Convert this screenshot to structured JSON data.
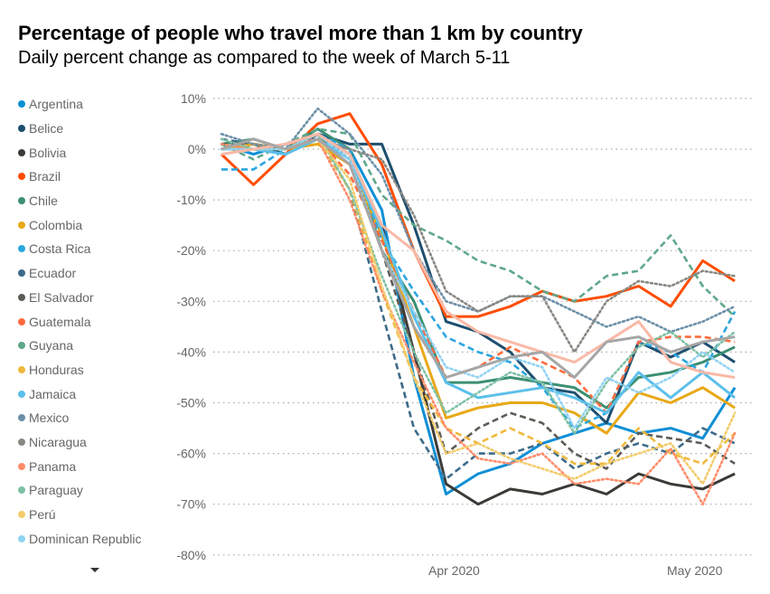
{
  "chart_data": {
    "type": "line",
    "title": "Percentage of people who travel more than 1 km by country",
    "subtitle": "Daily percent change as compared to the week of March 5-11",
    "xlabel": "",
    "ylabel": "",
    "x": [
      "2020-03-03",
      "2020-03-07",
      "2020-03-11",
      "2020-03-15",
      "2020-03-19",
      "2020-03-23",
      "2020-03-27",
      "2020-03-31",
      "2020-04-04",
      "2020-04-08",
      "2020-04-12",
      "2020-04-16",
      "2020-04-20",
      "2020-04-24",
      "2020-04-28",
      "2020-05-02",
      "2020-05-06"
    ],
    "xlim": [
      "2020-03-03",
      "2020-05-07"
    ],
    "x_ticks": [
      {
        "date": "2020-04-01",
        "label": "Apr 2020"
      },
      {
        "date": "2020-05-01",
        "label": "May 2020"
      }
    ],
    "ylim": [
      -80,
      10
    ],
    "y_ticks": [
      {
        "v": 10,
        "label": "10%"
      },
      {
        "v": 0,
        "label": "0%"
      },
      {
        "v": -10,
        "label": "-10%"
      },
      {
        "v": -20,
        "label": "-20%"
      },
      {
        "v": -30,
        "label": "-30%"
      },
      {
        "v": -40,
        "label": "-40%"
      },
      {
        "v": -50,
        "label": "-50%"
      },
      {
        "v": -60,
        "label": "-60%"
      },
      {
        "v": -70,
        "label": "-70%"
      },
      {
        "v": -80,
        "label": "-80%"
      }
    ],
    "grid": "horizontal dotted",
    "legend": "left",
    "series": [
      {
        "name": "Argentina",
        "color": "#0f8fd6",
        "style": "solid",
        "values": [
          1,
          -1,
          1,
          2,
          0,
          -12,
          -45,
          -68,
          -64,
          -62,
          -58,
          -56,
          -54,
          -56,
          -55,
          -57,
          -47
        ]
      },
      {
        "name": "Belice",
        "color": "#1d4e6e",
        "style": "solid",
        "values": [
          0,
          1,
          -1,
          3,
          1,
          1,
          -15,
          -34,
          -36,
          -40,
          -47,
          -48,
          -54,
          -38,
          -41,
          -38,
          -42
        ]
      },
      {
        "name": "Bolivia",
        "color": "#3b3a36",
        "style": "solid",
        "values": [
          0,
          1,
          0,
          3,
          -1,
          -15,
          -40,
          -66,
          -70,
          -67,
          -68,
          -66,
          -68,
          -64,
          -66,
          -67,
          -64
        ]
      },
      {
        "name": "Brazil",
        "color": "#ff4d00",
        "style": "solid",
        "values": [
          -1,
          -7,
          -1,
          5,
          7,
          -3,
          -20,
          -33,
          -33,
          -31,
          -28,
          -30,
          -29,
          -27,
          -31,
          -22,
          -26
        ]
      },
      {
        "name": "Chile",
        "color": "#3c8f73",
        "style": "solid",
        "values": [
          1,
          2,
          0,
          4,
          0,
          -20,
          -30,
          -46,
          -46,
          -45,
          -46,
          -47,
          -51,
          -45,
          -44,
          -42,
          -39
        ]
      },
      {
        "name": "Colombia",
        "color": "#e8a817",
        "style": "solid",
        "values": [
          0,
          1,
          0,
          1,
          -3,
          -17,
          -35,
          -53,
          -51,
          -50,
          -50,
          -52,
          -56,
          -48,
          -50,
          -47,
          -51
        ]
      },
      {
        "name": "Costa Rica",
        "color": "#2ca6e0",
        "style": "dashed",
        "values": [
          -4,
          -4,
          0,
          3,
          0,
          -18,
          -28,
          -37,
          -40,
          -42,
          -47,
          -55,
          -52,
          -38,
          -40,
          -44,
          -32
        ]
      },
      {
        "name": "Ecuador",
        "color": "#3d6b8a",
        "style": "dashed",
        "values": [
          2,
          1,
          0,
          2,
          -8,
          -32,
          -55,
          -65,
          -60,
          -60,
          -58,
          -63,
          -60,
          -58,
          -60,
          -55,
          -58
        ]
      },
      {
        "name": "El Salvador",
        "color": "#5c5c56",
        "style": "dashed",
        "values": [
          1,
          1,
          0,
          3,
          -2,
          -20,
          -40,
          -60,
          -55,
          -52,
          -54,
          -60,
          -63,
          -56,
          -57,
          -58,
          -62
        ]
      },
      {
        "name": "Guatemala",
        "color": "#ff6a3d",
        "style": "dashed",
        "values": [
          0,
          1,
          0,
          2,
          -5,
          -18,
          -32,
          -45,
          -43,
          -39,
          -42,
          -45,
          -52,
          -38,
          -37,
          -37,
          -38
        ]
      },
      {
        "name": "Guyana",
        "color": "#5fa88a",
        "style": "dashed",
        "values": [
          1,
          -2,
          1,
          4,
          3,
          -9,
          -15,
          -18,
          -22,
          -24,
          -28,
          -30,
          -25,
          -24,
          -17,
          -27,
          -33
        ]
      },
      {
        "name": "Honduras",
        "color": "#f0b83c",
        "style": "dashed",
        "values": [
          0,
          1,
          0,
          2,
          -8,
          -28,
          -45,
          -55,
          -58,
          -55,
          -58,
          -62,
          -62,
          -55,
          -60,
          -62,
          -56
        ]
      },
      {
        "name": "Jamaica",
        "color": "#5cc0ea",
        "style": "solid",
        "values": [
          0,
          0,
          -1,
          2,
          -2,
          -16,
          -33,
          -46,
          -49,
          -48,
          -47,
          -49,
          -52,
          -44,
          -49,
          -44,
          -49
        ]
      },
      {
        "name": "Mexico",
        "color": "#6c8fa8",
        "style": "dotted",
        "values": [
          3,
          1,
          0,
          8,
          3,
          -5,
          -20,
          -30,
          -32,
          -29,
          -29,
          -32,
          -35,
          -33,
          -36,
          -34,
          -31
        ]
      },
      {
        "name": "Nicaragua",
        "color": "#888883",
        "style": "dotted",
        "values": [
          0,
          0,
          0,
          2,
          0,
          -2,
          -13,
          -28,
          -32,
          -29,
          -29,
          -40,
          -30,
          -26,
          -27,
          -24,
          -25
        ]
      },
      {
        "name": "Panama",
        "color": "#ff8c6a",
        "style": "dotted",
        "values": [
          1,
          0,
          1,
          2,
          -10,
          -28,
          -42,
          -55,
          -61,
          -62,
          -60,
          -66,
          -65,
          -66,
          -59,
          -70,
          -56
        ]
      },
      {
        "name": "Paraguay",
        "color": "#7fc1a6",
        "style": "dotted",
        "values": [
          2,
          0,
          0,
          3,
          -8,
          -25,
          -40,
          -52,
          -48,
          -44,
          -46,
          -56,
          -46,
          -39,
          -36,
          -41,
          -36
        ]
      },
      {
        "name": "Perú",
        "color": "#f3cc6b",
        "style": "dotted",
        "values": [
          0,
          0,
          0,
          2,
          -6,
          -27,
          -45,
          -60,
          -58,
          -61,
          -63,
          -65,
          -62,
          -60,
          -58,
          -66,
          -52
        ]
      },
      {
        "name": "Dominican Republic",
        "color": "#91d3f2",
        "style": "dotted",
        "values": [
          0,
          0,
          0,
          3,
          -2,
          -20,
          -32,
          -43,
          -45,
          -41,
          -43,
          -55,
          -45,
          -48,
          -45,
          -40,
          -44
        ]
      },
      {
        "color": "#f9b9a6",
        "style": "solid",
        "values": [
          -1,
          0,
          1,
          3,
          -1,
          -15,
          -20,
          -32,
          -36,
          -38,
          -40,
          -42,
          -38,
          -34,
          -42,
          -44,
          -45
        ]
      },
      {
        "color": "#a6a6a6",
        "style": "solid",
        "values": [
          0,
          2,
          0,
          2,
          -3,
          -20,
          -35,
          -45,
          -43,
          -41,
          -40,
          -45,
          -38,
          -37,
          -40,
          -38,
          -37
        ]
      }
    ]
  }
}
